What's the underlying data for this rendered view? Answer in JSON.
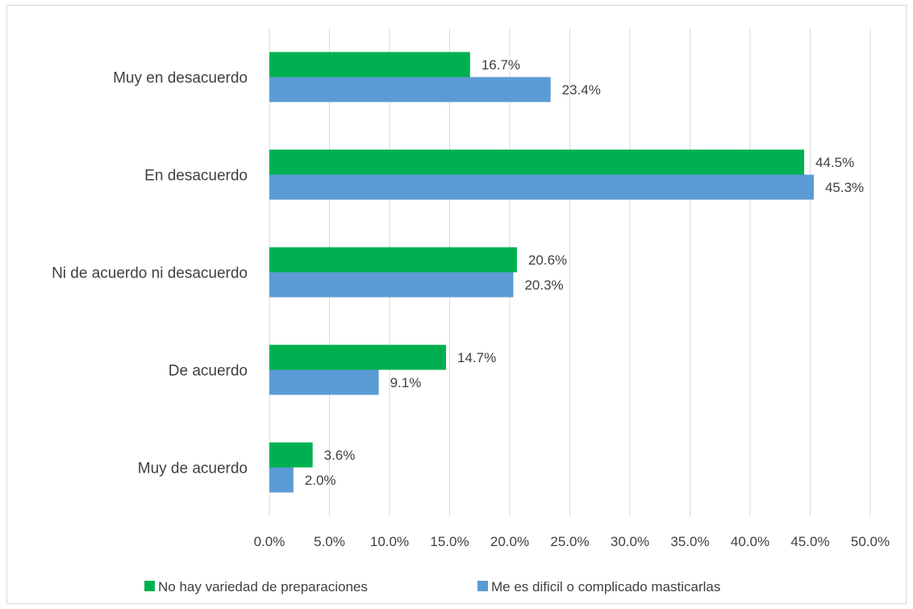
{
  "chart_data": {
    "type": "bar",
    "orientation": "horizontal",
    "categories": [
      "Muy en desacuerdo",
      "En desacuerdo",
      "Ni de acuerdo ni desacuerdo",
      "De acuerdo",
      "Muy de acuerdo"
    ],
    "series": [
      {
        "name": "No hay variedad de preparaciones",
        "color": "#00b050",
        "values": [
          16.7,
          44.5,
          20.6,
          14.7,
          3.6
        ],
        "labels": [
          "16.7%",
          "44.5%",
          "20.6%",
          "14.7%",
          "3.6%"
        ]
      },
      {
        "name": "Me es dificil o complicado masticarlas",
        "color": "#5b9bd5",
        "values": [
          23.4,
          45.3,
          20.3,
          9.1,
          2.0
        ],
        "labels": [
          "23.4%",
          "45.3%",
          "20.3%",
          "9.1%",
          "2.0%"
        ]
      }
    ],
    "xlim": [
      0,
      50
    ],
    "xticks": [
      "0.0%",
      "5.0%",
      "10.0%",
      "15.0%",
      "20.0%",
      "25.0%",
      "30.0%",
      "35.0%",
      "40.0%",
      "45.0%",
      "50.0%"
    ],
    "grid": "vertical",
    "legend_position": "bottom"
  }
}
